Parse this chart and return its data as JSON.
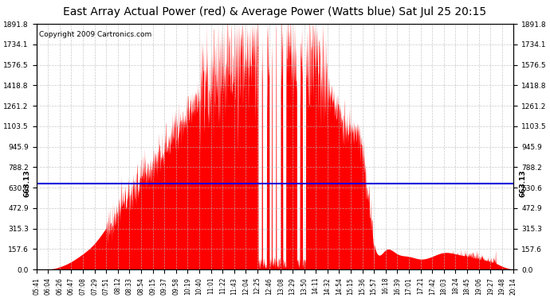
{
  "title": "East Array Actual Power (red) & Average Power (Watts blue) Sat Jul 25 20:15",
  "copyright": "Copyright 2009 Cartronics.com",
  "avg_power": 663.13,
  "ymax": 1891.8,
  "yticks": [
    0.0,
    157.6,
    315.3,
    472.9,
    630.6,
    788.2,
    945.9,
    1103.5,
    1261.2,
    1418.8,
    1576.5,
    1734.1,
    1891.8
  ],
  "xtick_labels": [
    "05:41",
    "06:04",
    "06:26",
    "06:47",
    "07:08",
    "07:29",
    "07:51",
    "08:12",
    "08:33",
    "08:54",
    "09:15",
    "09:37",
    "09:58",
    "10:19",
    "10:40",
    "11:01",
    "11:22",
    "11:43",
    "12:04",
    "12:25",
    "12:46",
    "13:08",
    "13:29",
    "13:50",
    "14:11",
    "14:32",
    "14:54",
    "15:15",
    "15:36",
    "15:57",
    "16:18",
    "16:39",
    "17:01",
    "17:21",
    "17:42",
    "18:03",
    "18:24",
    "18:45",
    "19:06",
    "19:27",
    "19:48",
    "20:14"
  ],
  "bg_color": "#ffffff",
  "fill_color": "#ff0000",
  "line_color": "#0000dd",
  "grid_color": "#bbbbbb",
  "title_fontsize": 10,
  "copyright_fontsize": 6.5
}
